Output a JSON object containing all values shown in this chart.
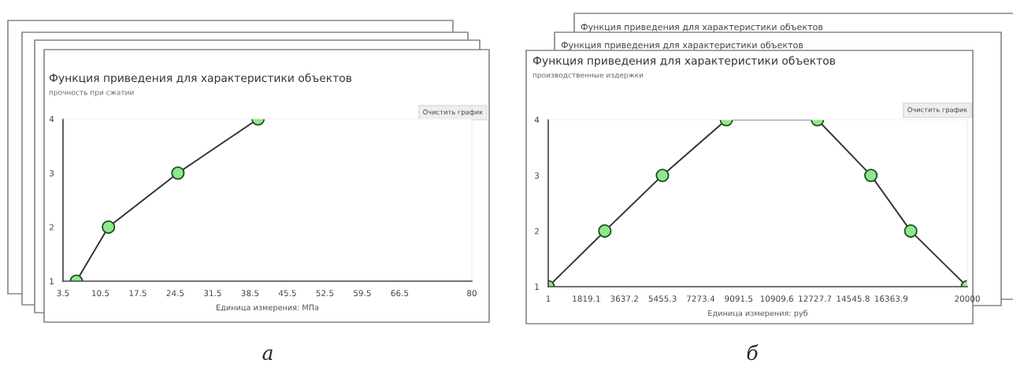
{
  "chart_data": [
    {
      "type": "line",
      "title": "Функция приведения для характеристики объектов",
      "subtitle": "прочность при сжатии",
      "xlabel": "Единица измерения: МПа",
      "x": [
        6,
        12,
        25,
        40
      ],
      "values": [
        1,
        2,
        3,
        4
      ],
      "color": "#8ee88e",
      "marker": "circle",
      "grid": false,
      "xlim": [
        3.5,
        80
      ],
      "xticks": [
        3.5,
        10.5,
        17.5,
        24.5,
        31.5,
        38.5,
        45.5,
        52.5,
        59.5,
        66.5,
        80
      ],
      "ylim": [
        1,
        4
      ],
      "yticks": [
        1,
        2,
        3,
        4
      ],
      "annotations": [
        "Очистить график",
        "а"
      ]
    },
    {
      "type": "line",
      "title": "Функция приведения для характеристики объектов",
      "subtitle": "производственные издержки",
      "xlabel": "Единица измерения: руб",
      "x": [
        1,
        2700,
        5450,
        8500,
        12850,
        15400,
        17300,
        20000
      ],
      "values": [
        1,
        2,
        3,
        4,
        4,
        3,
        2,
        1
      ],
      "color": "#8ee88e",
      "marker": "circle",
      "grid": false,
      "xlim": [
        1,
        20000
      ],
      "xticks": [
        1,
        1819.1,
        3637.2,
        5455.3,
        7273.4,
        9091.5,
        10909.6,
        12727.7,
        14545.8,
        16363.9,
        20000
      ],
      "ylim": [
        1,
        4
      ],
      "yticks": [
        1,
        2,
        3,
        4
      ],
      "annotations": [
        "Очистить график",
        "б",
        "Функция приведения для характеристики объектов",
        "Функция приведения для характеристики объектов"
      ]
    }
  ]
}
